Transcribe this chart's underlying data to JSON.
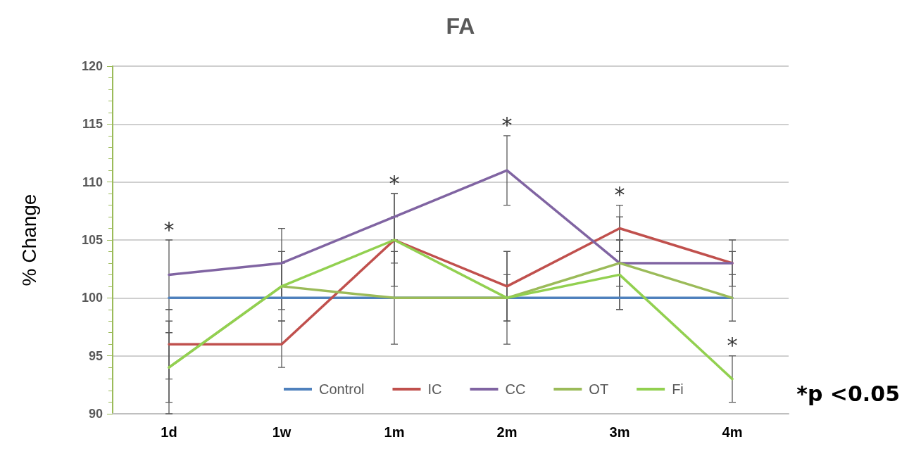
{
  "chart_data": {
    "type": "line",
    "title": "FA",
    "ylabel": "% Change",
    "categories": [
      "1d",
      "1w",
      "1m",
      "2m",
      "3m",
      "4m"
    ],
    "series": [
      {
        "name": "Control",
        "color": "#4f81bd",
        "values": [
          100,
          100,
          100,
          100,
          100,
          100
        ]
      },
      {
        "name": "IC",
        "color": "#c0504d",
        "values": [
          96,
          96,
          105,
          101,
          106,
          103
        ],
        "errors": [
          3,
          2,
          4,
          3,
          2,
          2
        ]
      },
      {
        "name": "CC",
        "color": "#8064a2",
        "values": [
          102,
          103,
          107,
          111,
          103,
          103
        ],
        "errors": [
          3,
          3,
          2,
          3,
          2,
          1
        ]
      },
      {
        "name": "OT",
        "color": "#9bbb59",
        "values": [
          94,
          101,
          100,
          100,
          103,
          100
        ],
        "errors": [
          3,
          2,
          4,
          4,
          4,
          2
        ]
      },
      {
        "name": "Fi",
        "color": "#92d050",
        "values": [
          94,
          101,
          105,
          100,
          102,
          93
        ],
        "errors": [
          4,
          3,
          2,
          2,
          3,
          2
        ]
      }
    ],
    "ylim": [
      90,
      120
    ],
    "yticks": [
      90,
      95,
      100,
      105,
      110,
      115,
      120
    ],
    "grid": "y",
    "legend": "bottom",
    "marker": "none",
    "line_style": "solid",
    "annotations": [
      {
        "text": "*",
        "x": "1d",
        "y": 105
      },
      {
        "text": "*",
        "x": "1m",
        "y": 109
      },
      {
        "text": "*",
        "x": "2m",
        "y": 114
      },
      {
        "text": "*",
        "x": "3m",
        "y": 108
      },
      {
        "text": "*",
        "x": "4m",
        "y": 95
      },
      "*p <0.05"
    ]
  }
}
